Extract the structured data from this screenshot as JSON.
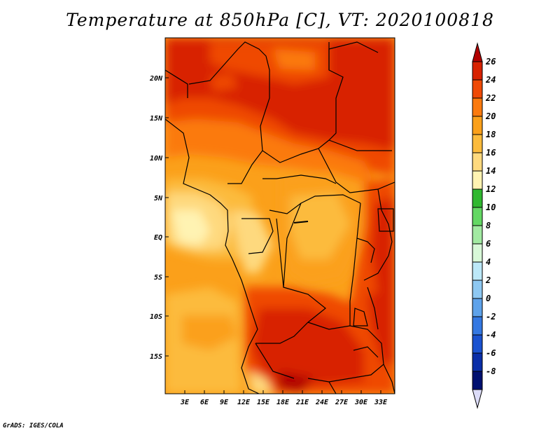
{
  "title": "Temperature at 850hPa [C], VT: 2020100818",
  "credit": "GrADS: IGES/COLA",
  "map": {
    "lat_labels": [
      "20N",
      "15N",
      "10N",
      "5N",
      "EQ",
      "5S",
      "10S",
      "15S"
    ],
    "lon_labels": [
      "3E",
      "6E",
      "9E",
      "12E",
      "15E",
      "18E",
      "21E",
      "24E",
      "27E",
      "30E",
      "33E"
    ]
  },
  "colorbar": {
    "levels": [
      "26",
      "24",
      "22",
      "20",
      "18",
      "16",
      "14",
      "12",
      "10",
      "8",
      "6",
      "4",
      "2",
      "0",
      "-2",
      "-4",
      "-6",
      "-8"
    ],
    "colors": [
      "#b10000",
      "#d82200",
      "#ef4a06",
      "#fb7a0e",
      "#fba01a",
      "#fcbb3c",
      "#fed97e",
      "#fff3b2",
      "#30b830",
      "#64d864",
      "#a2eaa2",
      "#d8f8d8",
      "#bce8f8",
      "#8ec8f2",
      "#5ea2ea",
      "#3478e2",
      "#1a52d0",
      "#0a2ea8",
      "#001070",
      "#dcdcf8"
    ]
  }
}
